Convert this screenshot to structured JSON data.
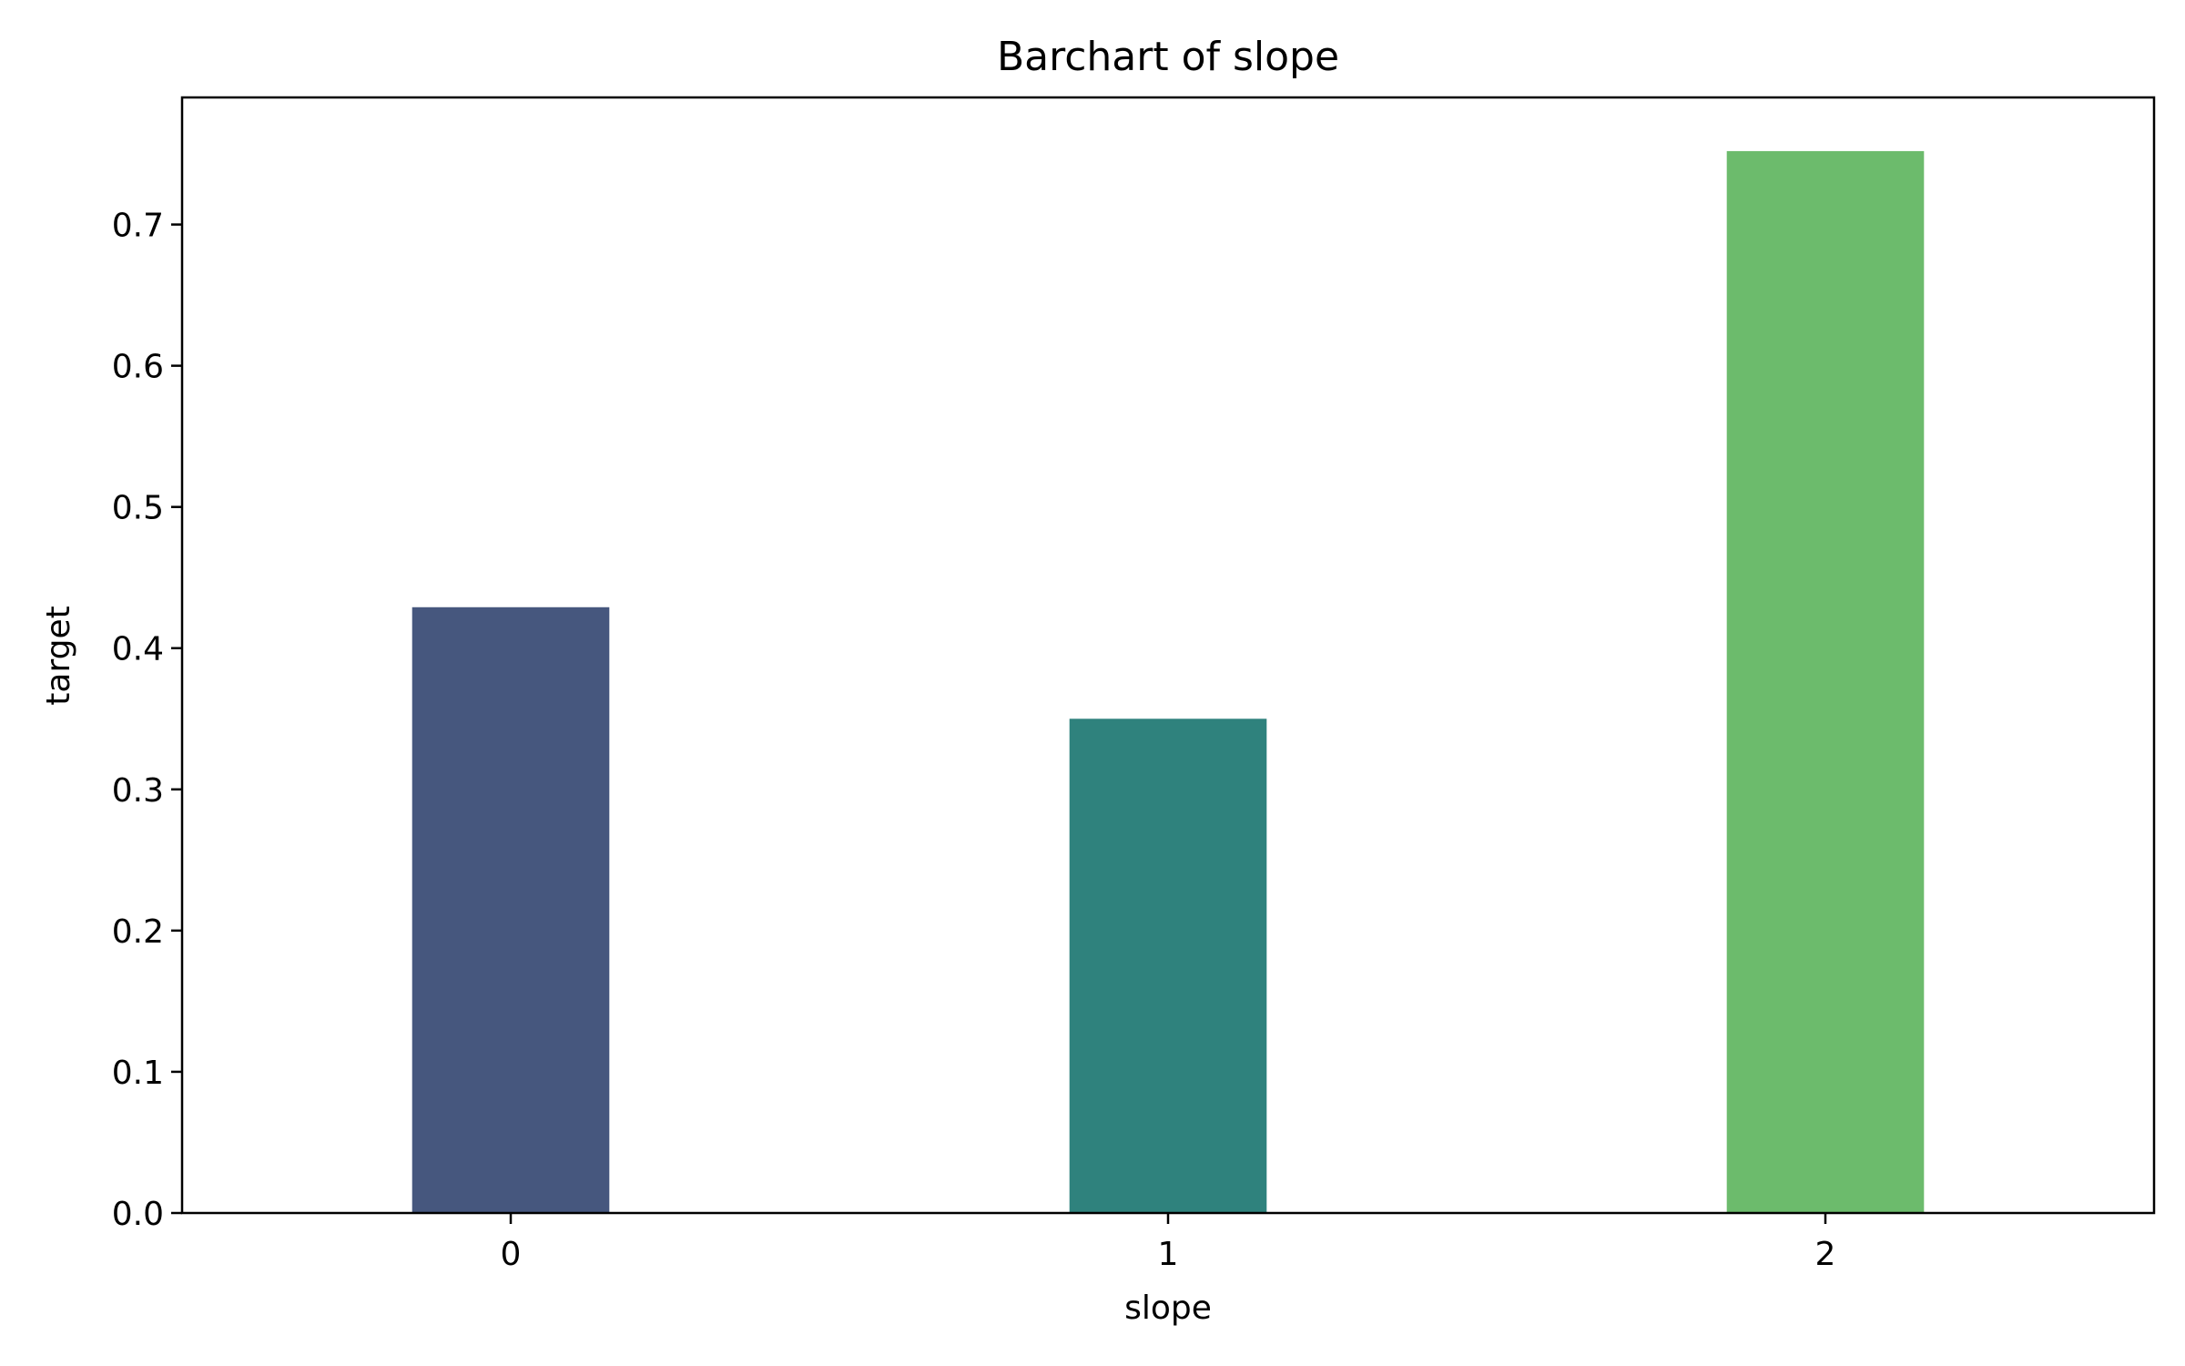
{
  "chart_data": {
    "type": "bar",
    "title": "Barchart of slope",
    "xlabel": "slope",
    "ylabel": "target",
    "categories": [
      "0",
      "1",
      "2"
    ],
    "values": [
      0.429,
      0.35,
      0.752
    ],
    "colors": [
      "#46577e",
      "#2f827d",
      "#6cbb6c"
    ],
    "ylim": [
      0,
      0.79
    ],
    "xlim": [
      -0.5,
      2.5
    ],
    "yticks": [
      0.0,
      0.1,
      0.2,
      0.3,
      0.4,
      0.5,
      0.6,
      0.7
    ],
    "ytick_labels": [
      "0.0",
      "0.1",
      "0.2",
      "0.3",
      "0.4",
      "0.5",
      "0.6",
      "0.7"
    ],
    "grid": false,
    "legend": "none"
  }
}
